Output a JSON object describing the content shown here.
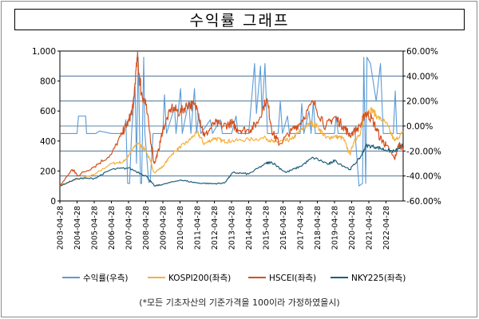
{
  "title": "수익률 그래프",
  "footnote": "(*모든 기초자산의 기준가격을 100이라 가정하였을시)",
  "chart_data": {
    "type": "line",
    "title": "수익률 그래프",
    "left_axis": {
      "min": 0,
      "max": 1000,
      "ticks": [
        "0",
        "200",
        "400",
        "600",
        "800",
        "1,000"
      ],
      "tick_values": [
        0,
        200,
        400,
        600,
        800,
        1000
      ]
    },
    "right_axis": {
      "min": -60,
      "max": 60,
      "ticks": [
        "-60.00%",
        "-40.00%",
        "-20.00%",
        "0.00%",
        "20.00%",
        "40.00%",
        "60.00%"
      ],
      "tick_values": [
        -60,
        -40,
        -20,
        0,
        20,
        40,
        60
      ]
    },
    "x_ticks": [
      "2003-04-28",
      "2004-04-28",
      "2005-04-28",
      "2006-04-28",
      "2007-04-28",
      "2008-04-28",
      "2009-04-28",
      "2010-04-28",
      "2011-04-28",
      "2012-04-28",
      "2013-04-28",
      "2014-04-28",
      "2015-04-28",
      "2016-04-28",
      "2017-04-28",
      "2018-04-28",
      "2019-04-28",
      "2020-04-28",
      "2021-04-28",
      "2022-04-28"
    ],
    "x_range": [
      "2003-04-28",
      "2023-04-28"
    ],
    "grid": "horizontal at right-axis ticks",
    "legend_position": "bottom",
    "colors": {
      "return": "#5b9bd5",
      "kospi": "#f5b041",
      "hscei": "#d4501e",
      "nky": "#1f5f7a"
    },
    "series": [
      {
        "name": "수익률(우측)",
        "axis": "right",
        "color": "#5b9bd5",
        "points": [
          [
            "2003-04-28",
            -6
          ],
          [
            "2004-04-28",
            -6
          ],
          [
            "2004-05-28",
            8
          ],
          [
            "2004-10-28",
            8
          ],
          [
            "2004-11-15",
            -6
          ],
          [
            "2005-06-01",
            -6
          ],
          [
            "2005-08-15",
            -4
          ],
          [
            "2006-04-28",
            -6
          ],
          [
            "2007-01-10",
            -6
          ],
          [
            "2007-03-01",
            5
          ],
          [
            "2007-04-10",
            -46
          ],
          [
            "2007-05-20",
            -46
          ],
          [
            "2007-07-01",
            -6
          ],
          [
            "2007-09-15",
            32
          ],
          [
            "2007-10-15",
            -30
          ],
          [
            "2007-11-20",
            55
          ],
          [
            "2008-01-10",
            -46
          ],
          [
            "2008-02-01",
            -46
          ],
          [
            "2008-03-15",
            55
          ],
          [
            "2008-04-10",
            -6
          ],
          [
            "2008-07-01",
            -45
          ],
          [
            "2008-08-01",
            -45
          ],
          [
            "2008-10-01",
            -6
          ],
          [
            "2009-04-28",
            -6
          ],
          [
            "2009-06-01",
            25
          ],
          [
            "2009-07-15",
            -6
          ],
          [
            "2010-01-01",
            15
          ],
          [
            "2010-02-01",
            -6
          ],
          [
            "2010-05-10",
            30
          ],
          [
            "2010-06-15",
            -6
          ],
          [
            "2010-11-01",
            20
          ],
          [
            "2010-12-15",
            -6
          ],
          [
            "2011-03-01",
            30
          ],
          [
            "2011-04-15",
            -6
          ],
          [
            "2011-06-01",
            10
          ],
          [
            "2011-07-15",
            -6
          ],
          [
            "2012-02-01",
            5
          ],
          [
            "2012-03-20",
            -6
          ],
          [
            "2012-09-01",
            5
          ],
          [
            "2012-10-15",
            -6
          ],
          [
            "2013-05-01",
            -6
          ],
          [
            "2013-08-01",
            8
          ],
          [
            "2013-09-15",
            -6
          ],
          [
            "2014-04-28",
            -6
          ],
          [
            "2014-09-01",
            50
          ],
          [
            "2014-10-10",
            10
          ],
          [
            "2015-01-05",
            48
          ],
          [
            "2015-02-05",
            10
          ],
          [
            "2015-04-10",
            50
          ],
          [
            "2015-06-01",
            -6
          ],
          [
            "2016-01-15",
            -6
          ],
          [
            "2016-03-01",
            20
          ],
          [
            "2016-04-15",
            -6
          ],
          [
            "2016-08-01",
            8
          ],
          [
            "2016-09-10",
            -6
          ],
          [
            "2017-04-28",
            -6
          ],
          [
            "2017-06-01",
            18
          ],
          [
            "2017-07-15",
            -6
          ],
          [
            "2017-11-01",
            12
          ],
          [
            "2017-12-15",
            -6
          ],
          [
            "2018-02-01",
            20
          ],
          [
            "2018-03-15",
            -6
          ],
          [
            "2019-04-28",
            -6
          ],
          [
            "2019-06-01",
            8
          ],
          [
            "2019-07-15",
            -6
          ],
          [
            "2020-04-28",
            -6
          ],
          [
            "2020-07-01",
            -2
          ],
          [
            "2020-10-01",
            -48
          ],
          [
            "2020-12-15",
            -46
          ],
          [
            "2021-01-10",
            55
          ],
          [
            "2021-02-20",
            -46
          ],
          [
            "2021-03-20",
            55
          ],
          [
            "2021-06-01",
            50
          ],
          [
            "2021-10-01",
            20
          ],
          [
            "2022-01-01",
            50
          ],
          [
            "2022-03-01",
            -6
          ],
          [
            "2022-06-01",
            -6
          ],
          [
            "2022-10-01",
            -6
          ],
          [
            "2022-11-10",
            28
          ],
          [
            "2022-12-15",
            -6
          ],
          [
            "2023-02-01",
            -6
          ],
          [
            "2023-04-28",
            -6
          ]
        ]
      },
      {
        "name": "KOSPI200(좌측)",
        "axis": "left",
        "color": "#f5b041",
        "points": [
          [
            "2003-04-28",
            100
          ],
          [
            "2004-04-28",
            145
          ],
          [
            "2005-04-28",
            175
          ],
          [
            "2006-04-28",
            250
          ],
          [
            "2007-01-01",
            260
          ],
          [
            "2007-04-28",
            300
          ],
          [
            "2007-10-28",
            390
          ],
          [
            "2008-04-28",
            340
          ],
          [
            "2008-10-28",
            190
          ],
          [
            "2009-04-28",
            230
          ],
          [
            "2009-10-28",
            310
          ],
          [
            "2010-04-28",
            360
          ],
          [
            "2010-10-28",
            400
          ],
          [
            "2011-04-28",
            460
          ],
          [
            "2011-09-28",
            380
          ],
          [
            "2012-04-28",
            420
          ],
          [
            "2012-10-28",
            400
          ],
          [
            "2013-04-28",
            400
          ],
          [
            "2014-04-28",
            410
          ],
          [
            "2015-04-28",
            420
          ],
          [
            "2015-10-28",
            390
          ],
          [
            "2016-04-28",
            400
          ],
          [
            "2016-10-28",
            410
          ],
          [
            "2017-04-28",
            470
          ],
          [
            "2017-11-28",
            520
          ],
          [
            "2018-04-28",
            500
          ],
          [
            "2018-10-28",
            420
          ],
          [
            "2019-04-28",
            430
          ],
          [
            "2019-10-28",
            420
          ],
          [
            "2020-03-20",
            310
          ],
          [
            "2020-06-28",
            410
          ],
          [
            "2020-10-28",
            440
          ],
          [
            "2021-01-28",
            590
          ],
          [
            "2021-06-28",
            610
          ],
          [
            "2021-10-28",
            560
          ],
          [
            "2022-04-28",
            520
          ],
          [
            "2022-10-28",
            400
          ],
          [
            "2023-04-28",
            460
          ]
        ]
      },
      {
        "name": "HSCEI(좌측)",
        "axis": "left",
        "color": "#d4501e",
        "points": [
          [
            "2003-04-28",
            100
          ],
          [
            "2004-01-15",
            210
          ],
          [
            "2004-05-15",
            170
          ],
          [
            "2005-04-28",
            230
          ],
          [
            "2006-04-28",
            310
          ],
          [
            "2006-12-28",
            460
          ],
          [
            "2007-04-28",
            530
          ],
          [
            "2007-07-28",
            620
          ],
          [
            "2007-11-01",
            960
          ],
          [
            "2008-01-28",
            720
          ],
          [
            "2008-04-28",
            640
          ],
          [
            "2008-10-28",
            250
          ],
          [
            "2009-01-28",
            340
          ],
          [
            "2009-04-28",
            480
          ],
          [
            "2009-10-28",
            620
          ],
          [
            "2010-04-28",
            590
          ],
          [
            "2010-10-28",
            650
          ],
          [
            "2011-04-28",
            620
          ],
          [
            "2011-09-28",
            430
          ],
          [
            "2012-04-28",
            520
          ],
          [
            "2012-10-28",
            500
          ],
          [
            "2013-04-28",
            520
          ],
          [
            "2013-08-28",
            480
          ],
          [
            "2014-04-28",
            470
          ],
          [
            "2014-10-28",
            520
          ],
          [
            "2015-05-15",
            680
          ],
          [
            "2015-09-28",
            450
          ],
          [
            "2016-02-15",
            380
          ],
          [
            "2016-10-28",
            470
          ],
          [
            "2017-04-28",
            520
          ],
          [
            "2018-01-28",
            660
          ],
          [
            "2018-10-28",
            500
          ],
          [
            "2019-04-28",
            560
          ],
          [
            "2019-10-28",
            500
          ],
          [
            "2020-03-20",
            440
          ],
          [
            "2020-10-28",
            500
          ],
          [
            "2021-02-15",
            590
          ],
          [
            "2021-06-28",
            550
          ],
          [
            "2021-12-28",
            420
          ],
          [
            "2022-04-28",
            370
          ],
          [
            "2022-10-28",
            280
          ],
          [
            "2023-01-28",
            380
          ],
          [
            "2023-04-28",
            350
          ]
        ]
      },
      {
        "name": "NKY225(좌측)",
        "axis": "left",
        "color": "#1f5f7a",
        "points": [
          [
            "2003-04-28",
            100
          ],
          [
            "2004-04-28",
            150
          ],
          [
            "2005-04-28",
            150
          ],
          [
            "2006-04-28",
            210
          ],
          [
            "2007-04-28",
            220
          ],
          [
            "2008-04-28",
            170
          ],
          [
            "2008-10-28",
            100
          ],
          [
            "2009-04-28",
            110
          ],
          [
            "2010-04-28",
            140
          ],
          [
            "2011-04-28",
            120
          ],
          [
            "2012-04-28",
            115
          ],
          [
            "2012-11-28",
            120
          ],
          [
            "2013-05-28",
            190
          ],
          [
            "2014-04-28",
            180
          ],
          [
            "2015-04-28",
            250
          ],
          [
            "2015-08-28",
            260
          ],
          [
            "2016-06-28",
            190
          ],
          [
            "2017-04-28",
            230
          ],
          [
            "2018-01-28",
            290
          ],
          [
            "2018-12-28",
            245
          ],
          [
            "2019-04-28",
            270
          ],
          [
            "2020-03-20",
            210
          ],
          [
            "2020-10-28",
            290
          ],
          [
            "2021-02-28",
            370
          ],
          [
            "2021-09-28",
            360
          ],
          [
            "2022-04-28",
            340
          ],
          [
            "2022-10-28",
            330
          ],
          [
            "2023-04-28",
            370
          ]
        ]
      }
    ]
  }
}
